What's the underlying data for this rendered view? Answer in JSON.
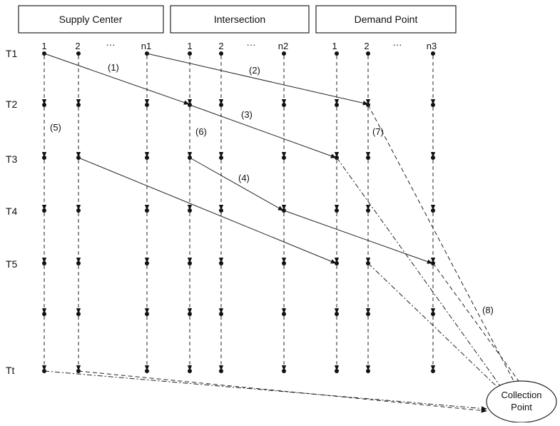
{
  "headers": {
    "supply": "Supply Center",
    "intersection": "Intersection",
    "demand": "Demand Point"
  },
  "columns": {
    "supply": [
      "1",
      "2",
      "···",
      "n1"
    ],
    "intersection": [
      "1",
      "2",
      "···",
      "n2"
    ],
    "demand": [
      "1",
      "2",
      "···",
      "n3"
    ]
  },
  "time_labels": [
    "T1",
    "T2",
    "T3",
    "T4",
    "T5",
    "Tt"
  ],
  "arc_labels": [
    "(1)",
    "(2)",
    "(3)",
    "(4)",
    "(5)",
    "(6)",
    "(7)",
    "(8)"
  ],
  "collection_point": {
    "line1": "Collection",
    "line2": "Point"
  }
}
